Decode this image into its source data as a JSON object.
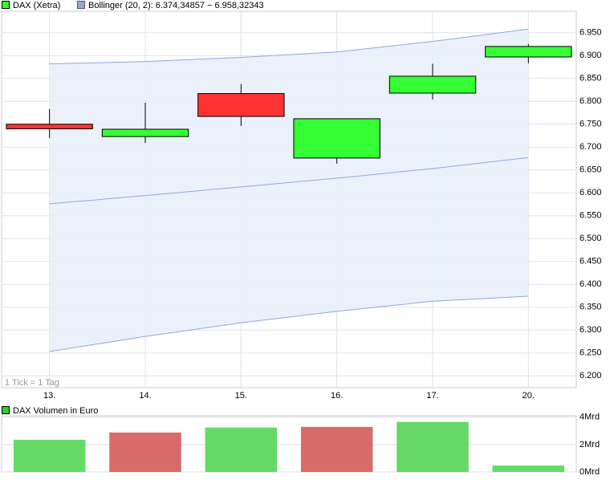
{
  "chart_data": [
    {
      "type": "candlestick",
      "categories": [
        "13.",
        "14.",
        "15.",
        "16.",
        "17.",
        "20."
      ],
      "series": [
        {
          "name": "DAX (Xetra)",
          "up_color": "#33ff33",
          "down_color": "#ff3333",
          "open": [
            6750,
            6723,
            6817,
            6676,
            6818,
            6897
          ],
          "high": [
            6783,
            6797,
            6838,
            6762,
            6882,
            6925
          ],
          "low": [
            6720,
            6709,
            6746,
            6664,
            6804,
            6883
          ],
          "close": [
            6740,
            6739,
            6767,
            6762,
            6855,
            6920
          ]
        }
      ],
      "bollinger": {
        "name": "Bollinger (20, 2): 6.374,34857 − 6.958,32343",
        "color": "#8fa8d8",
        "fill": "#e8effb",
        "upper": [
          6882,
          6887,
          6896,
          6908,
          6931,
          6958
        ],
        "middle": [
          6576,
          6594,
          6613,
          6632,
          6653,
          6677
        ],
        "lower": [
          6253,
          6286,
          6316,
          6341,
          6363,
          6374
        ]
      },
      "note": "1 Tick = 1 Tag",
      "ylim": [
        6174,
        6997
      ],
      "yticks": [
        {
          "value": 6200,
          "label": "6.200"
        },
        {
          "value": 6250,
          "label": "6.250"
        },
        {
          "value": 6300,
          "label": "6.300"
        },
        {
          "value": 6350,
          "label": "6.350"
        },
        {
          "value": 6400,
          "label": "6.400"
        },
        {
          "value": 6450,
          "label": "6.450"
        },
        {
          "value": 6500,
          "label": "6.500"
        },
        {
          "value": 6550,
          "label": "6.550"
        },
        {
          "value": 6600,
          "label": "6.600"
        },
        {
          "value": 6650,
          "label": "6.650"
        },
        {
          "value": 6700,
          "label": "6.700"
        },
        {
          "value": 6750,
          "label": "6.750"
        },
        {
          "value": 6800,
          "label": "6.800"
        },
        {
          "value": 6850,
          "label": "6.850"
        },
        {
          "value": 6900,
          "label": "6.900"
        },
        {
          "value": 6950,
          "label": "6.950"
        }
      ],
      "grid": true
    },
    {
      "type": "bar",
      "title": "DAX Volumen in Euro",
      "legend_color": "#33cc33",
      "values": [
        2.35,
        2.88,
        3.24,
        3.29,
        3.65,
        0.47
      ],
      "colors": [
        "#66d966",
        "#d96a6a",
        "#66d966",
        "#d96a6a",
        "#66d966",
        "#66d966"
      ],
      "ylim": [
        0,
        4.1
      ],
      "yticks": [
        {
          "value": 0,
          "label": "0Mrd"
        },
        {
          "value": 2,
          "label": "2Mrd"
        },
        {
          "value": 4,
          "label": "4Mrd"
        }
      ],
      "grid": true
    }
  ]
}
